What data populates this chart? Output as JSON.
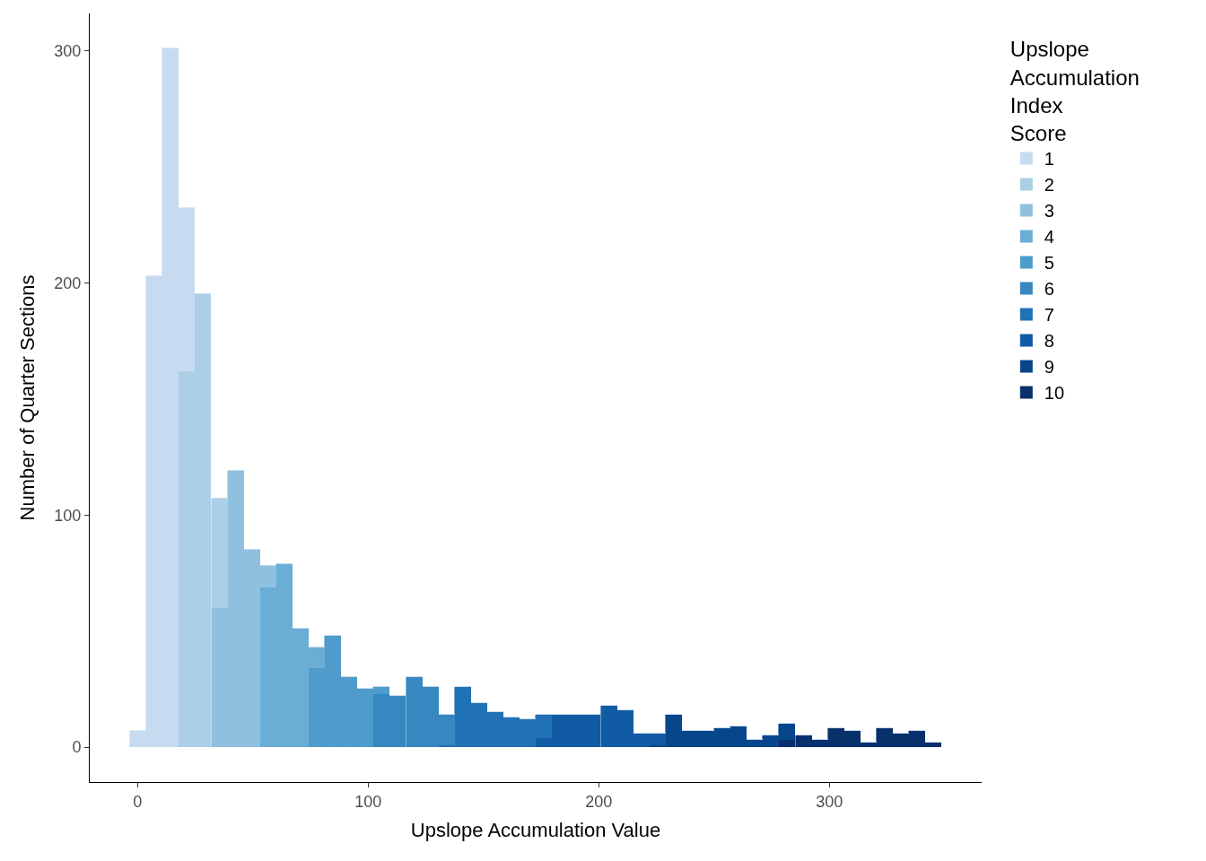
{
  "chart_data": {
    "type": "bar",
    "xlabel": "Upslope Accumulation Value",
    "ylabel": "Number of Quarter Sections",
    "legend_title": "Upslope\nAccumulation\nIndex\nScore",
    "legend": "right",
    "stacked": true,
    "xlim": [
      -20.7,
      366
    ],
    "ylim": [
      -15,
      316
    ],
    "xticks": [
      0,
      100,
      200,
      300
    ],
    "yticks": [
      0,
      100,
      200,
      300
    ],
    "x": [
      0.4,
      7.4,
      14.5,
      21.5,
      28.5,
      35.6,
      42.6,
      49.6,
      56.7,
      63.7,
      70.7,
      77.8,
      84.8,
      91.8,
      98.9,
      105.9,
      112.9,
      120.0,
      127.0,
      134.0,
      141.1,
      148.1,
      155.1,
      162.2,
      169.2,
      176.2,
      183.3,
      190.3,
      197.3,
      204.4,
      211.4,
      218.4,
      225.5,
      232.5,
      239.5,
      246.6,
      253.6,
      260.6,
      267.7,
      274.7,
      281.7,
      288.8,
      295.8,
      302.8,
      309.9,
      316.9,
      323.9,
      331.0,
      338.0,
      345.0
    ],
    "series": [
      {
        "name": "10",
        "color": "#08306b",
        "values": [
          0,
          0,
          0,
          0,
          0,
          0,
          0,
          0,
          0,
          0,
          0,
          0,
          0,
          0,
          0,
          0,
          0,
          0,
          0,
          0,
          0,
          0,
          0,
          0,
          0,
          0,
          0,
          0,
          0,
          0,
          0,
          0,
          0,
          0,
          0,
          0,
          0,
          0,
          0,
          0,
          3,
          5,
          3,
          8,
          7,
          2,
          8,
          6,
          7,
          2
        ]
      },
      {
        "name": "9",
        "color": "#08468b",
        "values": [
          0,
          0,
          0,
          0,
          0,
          0,
          0,
          0,
          0,
          0,
          0,
          0,
          0,
          0,
          0,
          0,
          0,
          0,
          0,
          0,
          0,
          0,
          0,
          0,
          0,
          0,
          0,
          0,
          0,
          0,
          0,
          0,
          1,
          14,
          7,
          7,
          8,
          9,
          3,
          5,
          7,
          0,
          0,
          0,
          0,
          0,
          0,
          0,
          0,
          0
        ]
      },
      {
        "name": "8",
        "color": "#105ba4",
        "values": [
          0,
          0,
          0,
          0,
          0,
          0,
          0,
          0,
          0,
          0,
          0,
          0,
          0,
          0,
          0,
          0,
          0,
          0,
          0,
          0,
          0,
          0,
          0,
          0,
          0,
          4,
          14,
          14,
          14,
          18,
          16,
          6,
          5,
          0,
          0,
          0,
          0,
          0,
          0,
          0,
          0,
          0,
          0,
          0,
          0,
          0,
          0,
          0,
          0,
          0
        ]
      },
      {
        "name": "7",
        "color": "#2171b5",
        "values": [
          0,
          0,
          0,
          0,
          0,
          0,
          0,
          0,
          0,
          0,
          0,
          0,
          0,
          0,
          0,
          0,
          0,
          0,
          0,
          1,
          26,
          19,
          15,
          13,
          12,
          10,
          0,
          0,
          0,
          0,
          0,
          0,
          0,
          0,
          0,
          0,
          0,
          0,
          0,
          0,
          0,
          0,
          0,
          0,
          0,
          0,
          0,
          0,
          0,
          0
        ]
      },
      {
        "name": "6",
        "color": "#3787c0",
        "values": [
          0,
          0,
          0,
          0,
          0,
          0,
          0,
          0,
          0,
          0,
          0,
          0,
          0,
          0,
          0,
          23,
          22,
          30,
          26,
          13,
          0,
          0,
          0,
          0,
          0,
          0,
          0,
          0,
          0,
          0,
          0,
          0,
          0,
          0,
          0,
          0,
          0,
          0,
          0,
          0,
          0,
          0,
          0,
          0,
          0,
          0,
          0,
          0,
          0,
          0
        ]
      },
      {
        "name": "5",
        "color": "#4f9bcb",
        "values": [
          0,
          0,
          0,
          0,
          0,
          0,
          0,
          0,
          0,
          0,
          0,
          34,
          48,
          30,
          25,
          3,
          0,
          0,
          0,
          0,
          0,
          0,
          0,
          0,
          0,
          0,
          0,
          0,
          0,
          0,
          0,
          0,
          0,
          0,
          0,
          0,
          0,
          0,
          0,
          0,
          0,
          0,
          0,
          0,
          0,
          0,
          0,
          0,
          0,
          0
        ]
      },
      {
        "name": "4",
        "color": "#6aaed6",
        "values": [
          0,
          0,
          0,
          0,
          0,
          0,
          0,
          0,
          69,
          79,
          51,
          9,
          0,
          0,
          0,
          0,
          0,
          0,
          0,
          0,
          0,
          0,
          0,
          0,
          0,
          0,
          0,
          0,
          0,
          0,
          0,
          0,
          0,
          0,
          0,
          0,
          0,
          0,
          0,
          0,
          0,
          0,
          0,
          0,
          0,
          0,
          0,
          0,
          0,
          0
        ]
      },
      {
        "name": "3",
        "color": "#8fc1de",
        "values": [
          0,
          0,
          0,
          0,
          0,
          60,
          119,
          85,
          9,
          0,
          0,
          0,
          0,
          0,
          0,
          0,
          0,
          0,
          0,
          0,
          0,
          0,
          0,
          0,
          0,
          0,
          0,
          0,
          0,
          0,
          0,
          0,
          0,
          0,
          0,
          0,
          0,
          0,
          0,
          0,
          0,
          0,
          0,
          0,
          0,
          0,
          0,
          0,
          0,
          0
        ]
      },
      {
        "name": "2",
        "color": "#abd0e6",
        "values": [
          0,
          0,
          0,
          162,
          195,
          47,
          0,
          0,
          0,
          0,
          0,
          0,
          0,
          0,
          0,
          0,
          0,
          0,
          0,
          0,
          0,
          0,
          0,
          0,
          0,
          0,
          0,
          0,
          0,
          0,
          0,
          0,
          0,
          0,
          0,
          0,
          0,
          0,
          0,
          0,
          0,
          0,
          0,
          0,
          0,
          0,
          0,
          0,
          0,
          0
        ]
      },
      {
        "name": "1",
        "color": "#c6dbef",
        "values": [
          7,
          203,
          301,
          70,
          0,
          0,
          0,
          0,
          0,
          0,
          0,
          0,
          0,
          0,
          0,
          0,
          0,
          0,
          0,
          0,
          0,
          0,
          0,
          0,
          0,
          0,
          0,
          0,
          0,
          0,
          0,
          0,
          0,
          0,
          0,
          0,
          0,
          0,
          0,
          0,
          0,
          0,
          0,
          0,
          0,
          0,
          0,
          0,
          0,
          0
        ]
      }
    ]
  }
}
